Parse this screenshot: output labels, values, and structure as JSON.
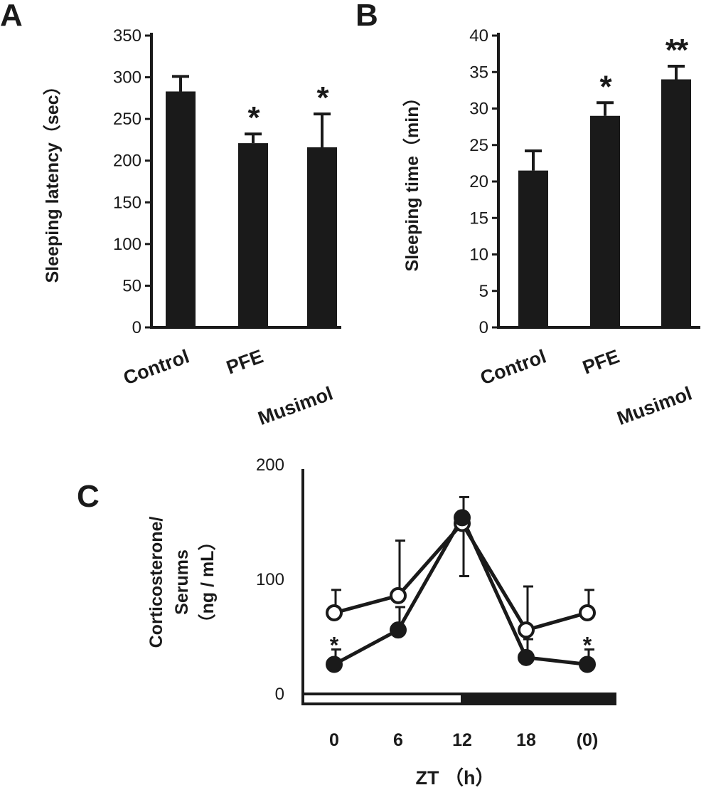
{
  "chart_data": [
    {
      "panel": "A",
      "type": "bar",
      "ylabel": "Sleeping latency（sec）",
      "categories": [
        "Control",
        "PFE",
        "Musimol"
      ],
      "values": [
        283,
        221,
        216
      ],
      "errors": [
        18,
        11,
        40
      ],
      "significance": [
        "",
        "*",
        "*"
      ],
      "ylim": [
        0,
        350
      ],
      "yticks": [
        "0",
        "50",
        "100",
        "150",
        "200",
        "250",
        "300",
        "350"
      ]
    },
    {
      "panel": "B",
      "type": "bar",
      "ylabel": "Sleeping time（min）",
      "categories": [
        "Control",
        "PFE",
        "Musimol"
      ],
      "values": [
        21.5,
        29.0,
        34.0
      ],
      "errors": [
        2.7,
        1.8,
        1.8
      ],
      "significance": [
        "",
        "*",
        "**"
      ],
      "ylim": [
        0,
        40
      ],
      "yticks": [
        "0",
        "5",
        "10",
        "15",
        "20",
        "25",
        "30",
        "35",
        "40"
      ]
    },
    {
      "panel": "C",
      "type": "line",
      "ylabel_lines": [
        "Corticosterone/",
        "Serums",
        "（ng / mL）"
      ],
      "xlabel": "ZT （h）",
      "x": [
        "0",
        "6",
        "12",
        "18",
        "(0)"
      ],
      "ylim": [
        0,
        200
      ],
      "yticks": [
        "0",
        "100",
        "200"
      ],
      "series": [
        {
          "marker": "open-circle",
          "values": [
            77,
            92,
            155,
            62,
            77
          ],
          "errors": [
            20,
            48,
            20,
            38,
            20
          ]
        },
        {
          "marker": "filled-circle",
          "values": [
            32,
            62,
            160,
            38,
            32
          ],
          "errors": [
            13,
            20,
            18,
            16,
            13
          ],
          "significance": [
            "*",
            "",
            "",
            "",
            "*"
          ]
        }
      ],
      "light_dark_bar": [
        "light",
        "dark"
      ]
    }
  ]
}
